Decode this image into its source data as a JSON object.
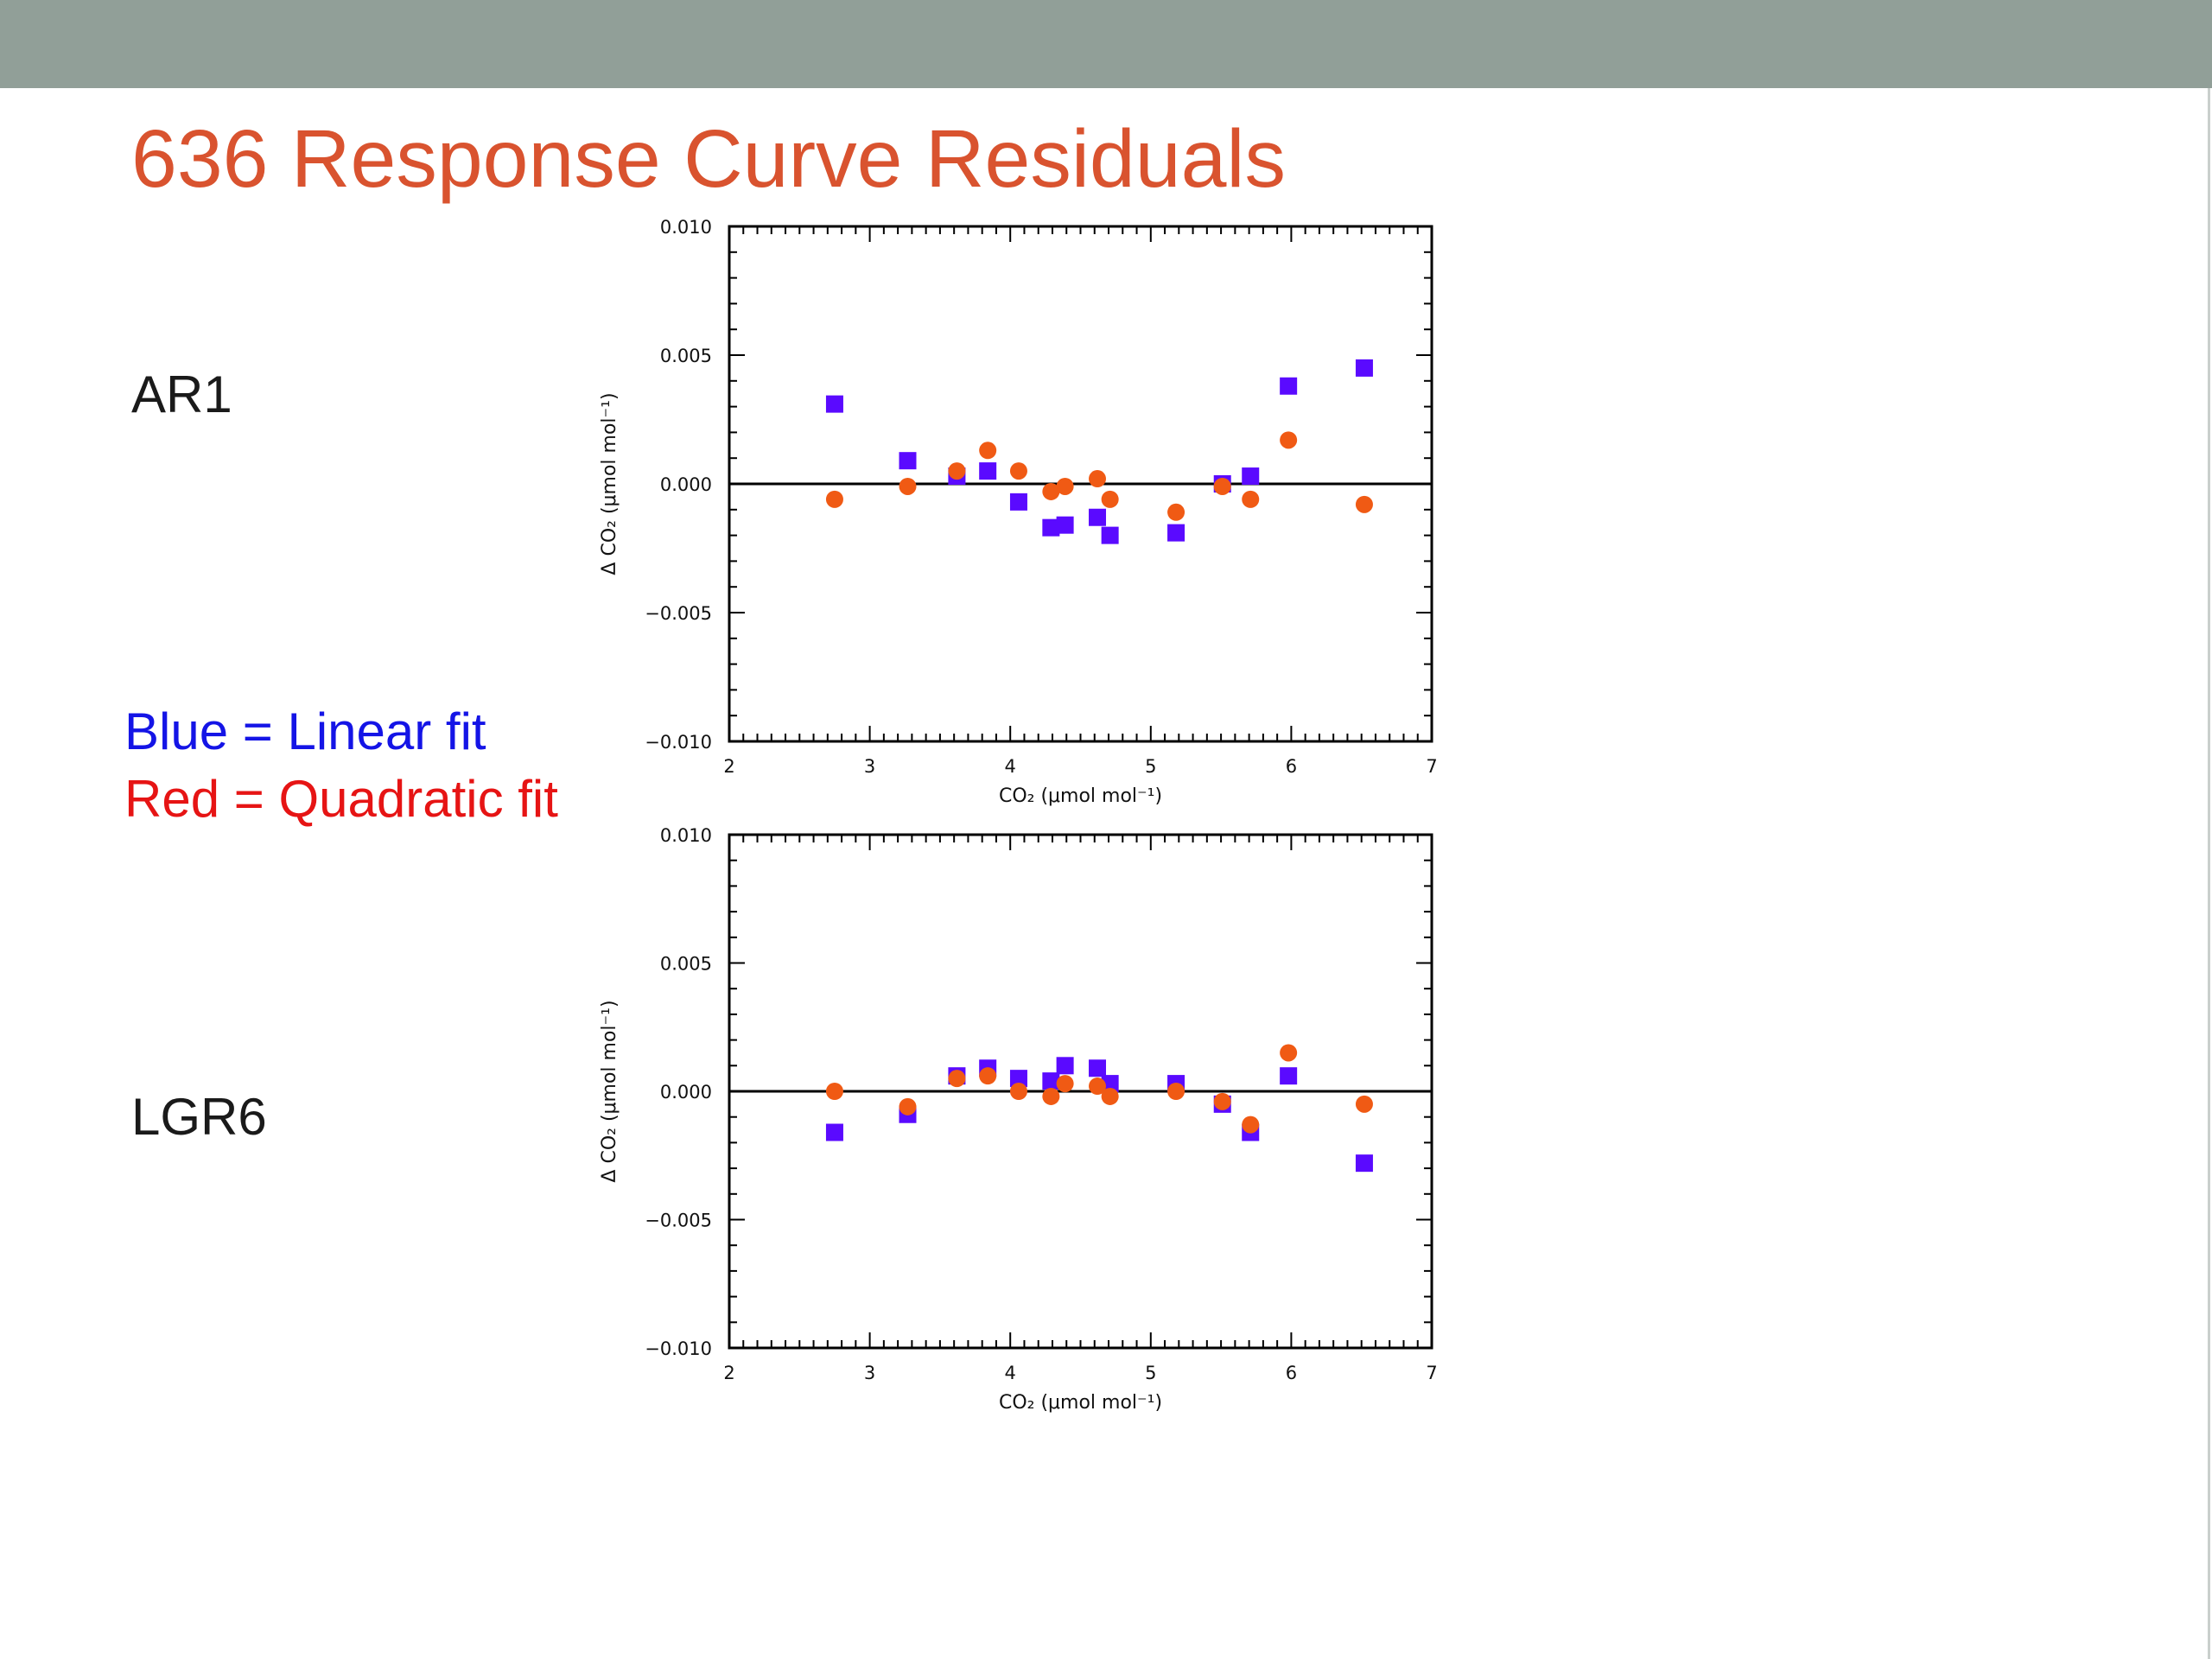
{
  "slide": {
    "title": "636 Response Curve Residuals",
    "title_color": "#d9532f",
    "top_bar_color": "#919f98"
  },
  "panel_labels": [
    "AR1",
    "LGR6"
  ],
  "legend": {
    "linear": "Blue = Linear fit",
    "linear_color": "#1414e6",
    "quadratic": "Red = Quadratic fit",
    "quadratic_color": "#e61414"
  },
  "chart_data": [
    {
      "type": "scatter",
      "panel": "AR1",
      "xlabel": "CO₂ (μmol mol⁻¹)",
      "ylabel": "Δ CO₂ (μmol mol⁻¹)",
      "xlim": [
        2,
        7
      ],
      "ylim": [
        -0.01,
        0.01
      ],
      "xticks": [
        2,
        3,
        4,
        5,
        6,
        7
      ],
      "xtick_labels": [
        "2",
        "3",
        "4",
        "5",
        "6",
        "7"
      ],
      "yticks": [
        -0.01,
        -0.005,
        0,
        0.005,
        0.01
      ],
      "ytick_labels": [
        "−0.010",
        "−0.005",
        "0.000",
        "0.005",
        "0.010"
      ],
      "zero_line": true,
      "series": [
        {
          "key": "linear",
          "marker": "square",
          "color": "#5a0aff",
          "x": [
            2.75,
            3.27,
            3.62,
            3.84,
            4.06,
            4.29,
            4.39,
            4.62,
            4.71,
            5.18,
            5.51,
            5.71,
            5.98,
            6.52
          ],
          "y": [
            0.0031,
            0.0009,
            0.0003,
            0.0005,
            -0.0007,
            -0.0017,
            -0.0016,
            -0.0013,
            -0.002,
            -0.0019,
            0.0,
            0.0003,
            0.0038,
            0.0045
          ]
        },
        {
          "key": "quadratic",
          "marker": "circle",
          "color": "#f05a14",
          "x": [
            2.75,
            3.27,
            3.62,
            3.84,
            4.06,
            4.29,
            4.39,
            4.62,
            4.71,
            5.18,
            5.51,
            5.71,
            5.98,
            6.52
          ],
          "y": [
            -0.0006,
            -0.0001,
            0.0005,
            0.0013,
            0.0005,
            -0.0003,
            -0.0001,
            0.0002,
            -0.0006,
            -0.0011,
            -0.0001,
            -0.0006,
            0.0017,
            -0.0008
          ]
        }
      ]
    },
    {
      "type": "scatter",
      "panel": "LGR6",
      "xlabel": "CO₂ (μmol mol⁻¹)",
      "ylabel": "Δ CO₂ (μmol mol⁻¹)",
      "xlim": [
        2,
        7
      ],
      "ylim": [
        -0.01,
        0.01
      ],
      "xticks": [
        2,
        3,
        4,
        5,
        6,
        7
      ],
      "xtick_labels": [
        "2",
        "3",
        "4",
        "5",
        "6",
        "7"
      ],
      "yticks": [
        -0.01,
        -0.005,
        0,
        0.005,
        0.01
      ],
      "ytick_labels": [
        "−0.010",
        "−0.005",
        "0.000",
        "0.005",
        "0.010"
      ],
      "zero_line": true,
      "series": [
        {
          "key": "linear",
          "marker": "square",
          "color": "#5a0aff",
          "x": [
            2.75,
            3.27,
            3.62,
            3.84,
            4.06,
            4.29,
            4.39,
            4.62,
            4.71,
            5.18,
            5.51,
            5.71,
            5.98,
            6.52
          ],
          "y": [
            -0.0016,
            -0.0009,
            0.0006,
            0.0009,
            0.0005,
            0.0004,
            0.001,
            0.0009,
            0.0003,
            0.0003,
            -0.0005,
            -0.0016,
            0.0006,
            -0.0028
          ]
        },
        {
          "key": "quadratic",
          "marker": "circle",
          "color": "#f05a14",
          "x": [
            2.75,
            3.27,
            3.62,
            3.84,
            4.06,
            4.29,
            4.39,
            4.62,
            4.71,
            5.18,
            5.51,
            5.71,
            5.98,
            6.52
          ],
          "y": [
            0.0,
            -0.0006,
            0.0005,
            0.0006,
            0.0,
            -0.0002,
            0.0003,
            0.0002,
            -0.0002,
            0.0,
            -0.0004,
            -0.0013,
            0.0015,
            -0.0005
          ]
        }
      ]
    }
  ]
}
